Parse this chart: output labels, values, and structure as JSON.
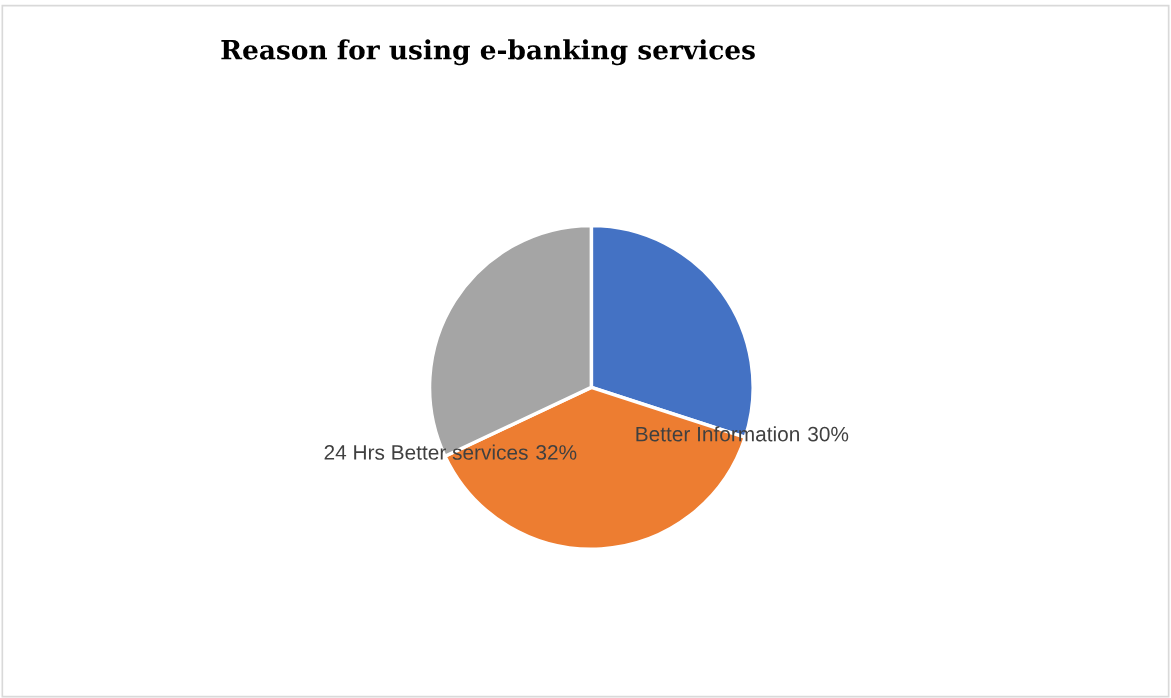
{
  "chart_data": {
    "type": "pie",
    "title": "Reason for using e-banking services",
    "categories": [
      "Better Information",
      null,
      "24 Hrs Better services"
    ],
    "values": [
      30,
      38,
      32
    ],
    "colors": [
      "#4472c4",
      "#ed7d31",
      "#a5a5a5"
    ],
    "value_labels": [
      "30%",
      null,
      "32%"
    ]
  }
}
